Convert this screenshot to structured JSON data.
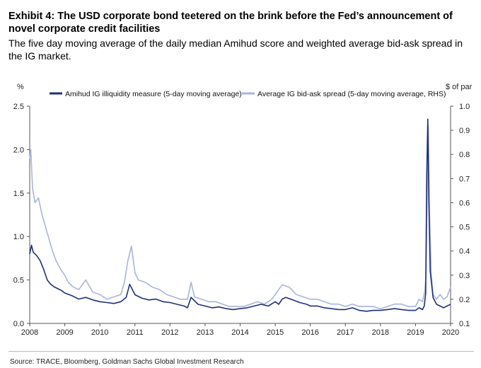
{
  "header": {
    "title": "Exhibit 4: The USD corporate bond teetered on the brink before the Fed’s announcement of novel corporate credit facilities",
    "subtitle": "The five day moving average of the daily median Amihud score and weighted average bid-ask spread in the IG market."
  },
  "footer": {
    "source": "Source: TRACE, Bloomberg, Goldman Sachs Global Investment Research"
  },
  "colors": {
    "amihud": "#1f2f7a",
    "bidask": "#a9b4d8",
    "axis": "#555555",
    "text": "#222222"
  },
  "chart_data": {
    "type": "line",
    "xlabel": "",
    "ylabel": "%",
    "ylabel_right": "$ of par",
    "xlim": [
      2008,
      2020
    ],
    "ylim": [
      0,
      2.5
    ],
    "ylim_right": [
      0.1,
      1.0
    ],
    "x_ticks": [
      "2008",
      "2009",
      "2010",
      "2011",
      "2012",
      "2013",
      "2014",
      "2015",
      "2016",
      "2017",
      "2018",
      "2019",
      "2020"
    ],
    "y_ticks_left": [
      "0.0",
      "0.5",
      "1.0",
      "1.5",
      "2.0",
      "2.5"
    ],
    "y_ticks_right": [
      "0.1",
      "0.2",
      "0.3",
      "0.4",
      "0.5",
      "0.6",
      "0.7",
      "0.8",
      "0.9",
      "1.0"
    ],
    "legend_position": "top",
    "grid": false,
    "series": [
      {
        "name": "Amihud IG illiquidity measure (5-day moving average)",
        "axis": "left",
        "x": [
          2008.0,
          2008.05,
          2008.1,
          2008.2,
          2008.3,
          2008.4,
          2008.5,
          2008.6,
          2008.7,
          2008.8,
          2008.9,
          2009.0,
          2009.2,
          2009.4,
          2009.6,
          2009.8,
          2010.0,
          2010.2,
          2010.4,
          2010.6,
          2010.75,
          2010.85,
          2011.0,
          2011.2,
          2011.4,
          2011.6,
          2011.8,
          2012.0,
          2012.2,
          2012.4,
          2012.5,
          2012.6,
          2012.8,
          2013.0,
          2013.2,
          2013.4,
          2013.6,
          2013.8,
          2014.0,
          2014.2,
          2014.4,
          2014.6,
          2014.8,
          2015.0,
          2015.1,
          2015.2,
          2015.3,
          2015.5,
          2015.7,
          2015.9,
          2016.0,
          2016.2,
          2016.4,
          2016.6,
          2016.8,
          2017.0,
          2017.2,
          2017.4,
          2017.6,
          2017.8,
          2018.0,
          2018.2,
          2018.4,
          2018.6,
          2018.8,
          2019.0,
          2019.1,
          2019.2,
          2019.25,
          2019.29,
          2019.32,
          2019.35,
          2019.38,
          2019.42,
          2019.5,
          2019.6,
          2019.7,
          2019.8,
          2019.9,
          2020.0
        ],
        "values": [
          0.8,
          0.9,
          0.82,
          0.78,
          0.72,
          0.62,
          0.5,
          0.45,
          0.42,
          0.4,
          0.38,
          0.35,
          0.32,
          0.28,
          0.3,
          0.27,
          0.25,
          0.24,
          0.23,
          0.25,
          0.3,
          0.45,
          0.33,
          0.29,
          0.27,
          0.28,
          0.25,
          0.24,
          0.22,
          0.2,
          0.18,
          0.3,
          0.22,
          0.2,
          0.18,
          0.19,
          0.17,
          0.16,
          0.17,
          0.18,
          0.2,
          0.22,
          0.2,
          0.25,
          0.22,
          0.28,
          0.3,
          0.27,
          0.24,
          0.22,
          0.2,
          0.2,
          0.18,
          0.17,
          0.16,
          0.16,
          0.18,
          0.15,
          0.14,
          0.15,
          0.15,
          0.16,
          0.17,
          0.16,
          0.15,
          0.15,
          0.18,
          0.16,
          0.2,
          0.35,
          1.7,
          2.35,
          1.4,
          0.6,
          0.3,
          0.22,
          0.2,
          0.18,
          0.2,
          0.22
        ]
      },
      {
        "name": "Average IG bid-ask spread (5-day moving average, RHS)",
        "axis": "right",
        "x": [
          2008.0,
          2008.03,
          2008.08,
          2008.15,
          2008.25,
          2008.35,
          2008.45,
          2008.55,
          2008.65,
          2008.75,
          2008.9,
          2009.0,
          2009.1,
          2009.25,
          2009.4,
          2009.6,
          2009.8,
          2010.0,
          2010.2,
          2010.4,
          2010.6,
          2010.7,
          2010.8,
          2010.9,
          2011.0,
          2011.1,
          2011.3,
          2011.5,
          2011.7,
          2011.9,
          2012.1,
          2012.3,
          2012.5,
          2012.6,
          2012.7,
          2012.9,
          2013.1,
          2013.3,
          2013.5,
          2013.7,
          2013.9,
          2014.1,
          2014.3,
          2014.5,
          2014.7,
          2014.9,
          2015.0,
          2015.1,
          2015.2,
          2015.4,
          2015.6,
          2015.8,
          2016.0,
          2016.2,
          2016.4,
          2016.6,
          2016.8,
          2017.0,
          2017.2,
          2017.4,
          2017.6,
          2017.8,
          2018.0,
          2018.2,
          2018.4,
          2018.6,
          2018.8,
          2019.0,
          2019.1,
          2019.2,
          2019.26,
          2019.3,
          2019.33,
          2019.36,
          2019.4,
          2019.45,
          2019.5,
          2019.6,
          2019.7,
          2019.8,
          2019.9,
          2020.0
        ],
        "values": [
          0.78,
          0.82,
          0.66,
          0.6,
          0.62,
          0.55,
          0.5,
          0.45,
          0.4,
          0.36,
          0.32,
          0.3,
          0.27,
          0.25,
          0.24,
          0.28,
          0.23,
          0.22,
          0.2,
          0.21,
          0.22,
          0.27,
          0.36,
          0.42,
          0.31,
          0.28,
          0.27,
          0.25,
          0.24,
          0.22,
          0.21,
          0.2,
          0.2,
          0.27,
          0.21,
          0.2,
          0.19,
          0.19,
          0.18,
          0.17,
          0.17,
          0.17,
          0.18,
          0.19,
          0.18,
          0.2,
          0.22,
          0.24,
          0.26,
          0.25,
          0.22,
          0.21,
          0.2,
          0.2,
          0.19,
          0.18,
          0.18,
          0.17,
          0.18,
          0.17,
          0.17,
          0.17,
          0.16,
          0.17,
          0.18,
          0.18,
          0.17,
          0.17,
          0.2,
          0.19,
          0.23,
          0.3,
          0.6,
          0.92,
          0.55,
          0.3,
          0.22,
          0.2,
          0.22,
          0.2,
          0.21,
          0.25
        ]
      }
    ]
  }
}
